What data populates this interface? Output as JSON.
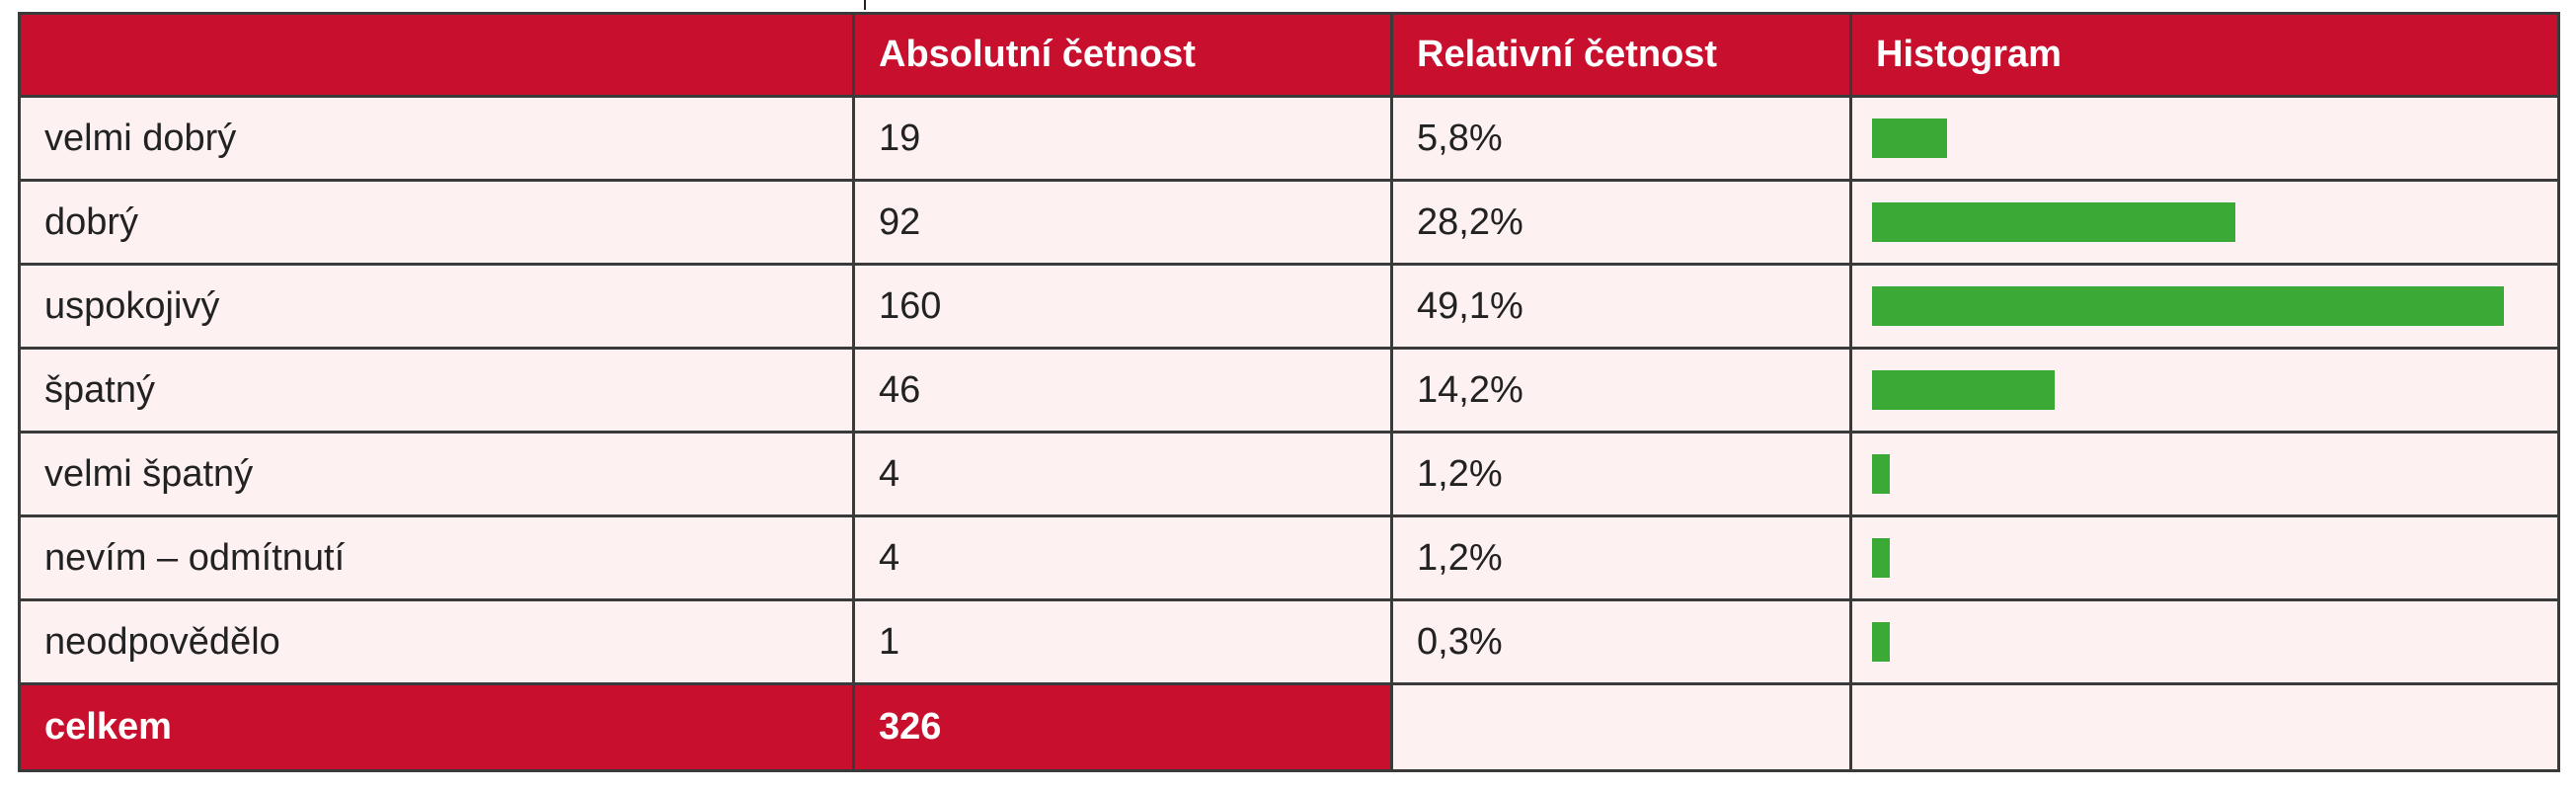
{
  "colors": {
    "header_bg": "#c8102e",
    "row_bg": "#fdf1f1",
    "bar": "#3aa935",
    "border": "#3a3a3a"
  },
  "table": {
    "headers": [
      "",
      "Absolutní četnost",
      "Relativní četnost",
      "Histogram"
    ],
    "rows": [
      {
        "label": "velmi dobrý",
        "absolute": "19",
        "relative": "5,8%",
        "hist_value": 5.8
      },
      {
        "label": "dobrý",
        "absolute": "92",
        "relative": "28,2%",
        "hist_value": 28.2
      },
      {
        "label": "uspokojivý",
        "absolute": "160",
        "relative": "49,1%",
        "hist_value": 49.1
      },
      {
        "label": "špatný",
        "absolute": "46",
        "relative": "14,2%",
        "hist_value": 14.2
      },
      {
        "label": "velmi špatný",
        "absolute": "4",
        "relative": "1,2%",
        "hist_value": 1.2
      },
      {
        "label": "nevím – odmítnutí",
        "absolute": "4",
        "relative": "1,2%",
        "hist_value": 1.2
      },
      {
        "label": "neodpovědělo",
        "absolute": "1",
        "relative": "0,3%",
        "hist_value": 0.3
      }
    ],
    "total": {
      "label": "celkem",
      "absolute": "326"
    }
  }
}
